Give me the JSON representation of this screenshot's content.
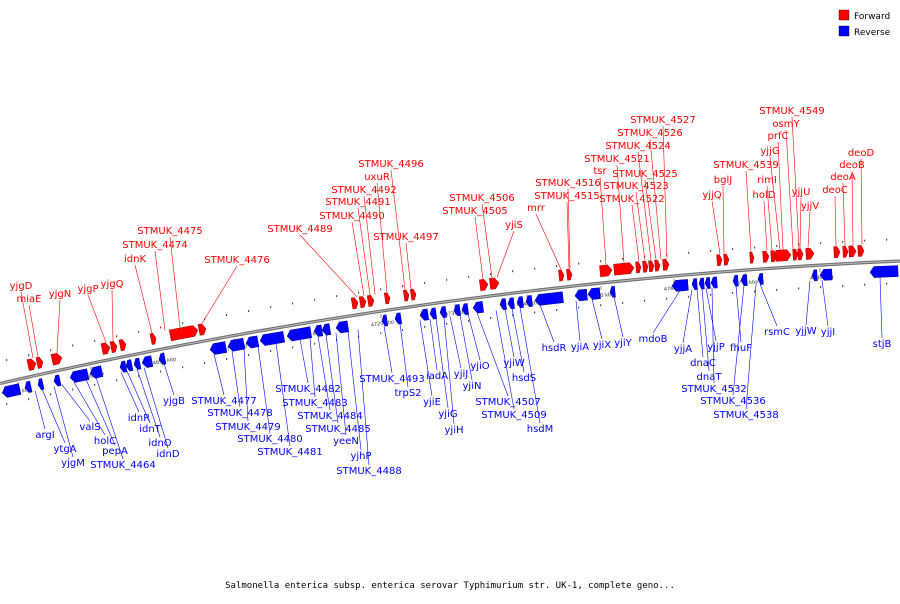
{
  "caption": "Salmonella enterica subsp. enterica serovar Typhimurium str. UK-1, complete geno...",
  "legend": {
    "forward_label": "Forward",
    "reverse_label": "Reverse",
    "forward_color": "#ff0000",
    "reverse_color": "#0000ff"
  },
  "forward_labels": [
    "yjgD",
    "miaE",
    "yjgN",
    "yjgP",
    "yjgQ",
    "idnK",
    "STMUK_4474",
    "STMUK_4475",
    "STMUK_4476",
    "STMUK_4489",
    "STMUK_4490",
    "STMUK_4491",
    "STMUK_4492",
    "uxuR",
    "STMUK_4496",
    "STMUK_4497",
    "STMUK_4505",
    "STMUK_4506",
    "yjiS",
    "mrr",
    "STMUK_4515",
    "STMUK_4516",
    "tsr",
    "STMUK_4521",
    "STMUK_4522",
    "STMUK_4523",
    "STMUK_4524",
    "STMUK_4525",
    "STMUK_4526",
    "STMUK_4527",
    "yjjQ",
    "bglJ",
    "STMUK_4539",
    "holD",
    "rimI",
    "yjjG",
    "prfC",
    "osmY",
    "STMUK_4549",
    "yjjU",
    "yjjV",
    "deoC",
    "deoA",
    "deoB",
    "deoD"
  ],
  "reverse_labels": [
    "argI",
    "ytgA",
    "yjgM",
    "valS",
    "holC",
    "pepA",
    "STMUK_4464",
    "idnR",
    "idnT",
    "idnO",
    "idnD",
    "yjgB",
    "STMUK_4477",
    "STMUK_4478",
    "STMUK_4479",
    "STMUK_4480",
    "STMUK_4481",
    "STMUK_4482",
    "STMUK_4483",
    "STMUK_4484",
    "STMUK_4485",
    "yeeN",
    "yjhP",
    "STMUK_4488",
    "STMUK_4493",
    "trpS2",
    "yjiE",
    "iadA",
    "yjiG",
    "yjiH",
    "yjiJ",
    "yjiN",
    "yjiO",
    "STMUK_4507",
    "STMUK_4509",
    "yjiW",
    "hsdS",
    "hsdM",
    "hsdR",
    "yjiA",
    "yjiX",
    "yjiY",
    "mdoB",
    "yjjA",
    "dnaC",
    "dnaT",
    "yjjP",
    "STMUK_4532",
    "fhuF",
    "STMUK_4536",
    "STMUK_4538",
    "rsmC",
    "yjjW",
    "yjjI",
    "stjB"
  ],
  "ticks": [
    "4670 kbp",
    "4680 kbp",
    "4690 kbp",
    "4700 kbp",
    "4710 kbp",
    "4720 kbp",
    "4730 kbp",
    "4740 kbp",
    "4750 kbp",
    "4760 kbp",
    "4770 kbp",
    "4780 kbp"
  ]
}
